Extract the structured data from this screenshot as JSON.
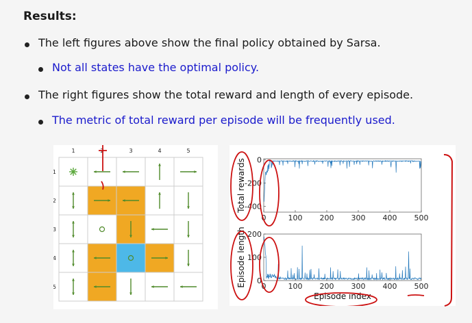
{
  "slide": {
    "title": "Results:",
    "bullets": [
      {
        "level": 1,
        "text": "The left figures above show the final policy obtained by Sarsa.",
        "color": "#1a1a1a"
      },
      {
        "level": 2,
        "text": "Not all states have the optimal policy.",
        "color": "#1a1acc"
      },
      {
        "level": 1,
        "text": "The right figures show the total reward and length of every episode.",
        "color": "#1a1a1a"
      },
      {
        "level": 2,
        "text": "The metric of total reward per episode will be frequently used.",
        "color": "#1a1acc"
      }
    ]
  },
  "grid": {
    "col_labels": [
      "1",
      "2",
      "3",
      "4",
      "5"
    ],
    "row_labels": [
      "1",
      "2",
      "3",
      "4",
      "5"
    ],
    "colors": {
      "forbidden": "#f0a823",
      "target": "#4db8e8",
      "cell": "#ffffff",
      "arrow": "#4f8a2a"
    },
    "forbidden": [
      [
        2,
        2
      ],
      [
        2,
        3
      ],
      [
        3,
        3
      ],
      [
        4,
        2
      ],
      [
        4,
        4
      ],
      [
        5,
        2
      ]
    ],
    "target": [
      4,
      3
    ],
    "policy": [
      [
        "stay",
        "left",
        "left",
        "up",
        "right"
      ],
      [
        "updown",
        "right",
        "left",
        "up",
        "down"
      ],
      [
        "updown",
        "circle",
        "down",
        "left",
        "down"
      ],
      [
        "updown",
        "left",
        "circle",
        "right",
        "down"
      ],
      [
        "updown",
        "left",
        "down",
        "left",
        "left"
      ]
    ]
  },
  "chart_data": [
    {
      "type": "line",
      "ylabel": "Total rewards",
      "xlabel": "",
      "xlim": [
        0,
        500
      ],
      "ylim": [
        -450,
        10
      ],
      "x_ticks": [
        "0",
        "100",
        "200",
        "300",
        "400",
        "500"
      ],
      "y_ticks": [
        "0",
        "-200",
        "-400"
      ],
      "color": "#2277bb"
    },
    {
      "type": "line",
      "ylabel": "Episode length",
      "xlabel": "Episode index",
      "xlim": [
        0,
        500
      ],
      "ylim": [
        0,
        200
      ],
      "x_ticks": [
        "0",
        "100",
        "200",
        "300",
        "400",
        "500"
      ],
      "y_ticks": [
        "0",
        "100",
        "200"
      ],
      "color": "#2277bb"
    }
  ],
  "annotation_color": "#cc1111"
}
